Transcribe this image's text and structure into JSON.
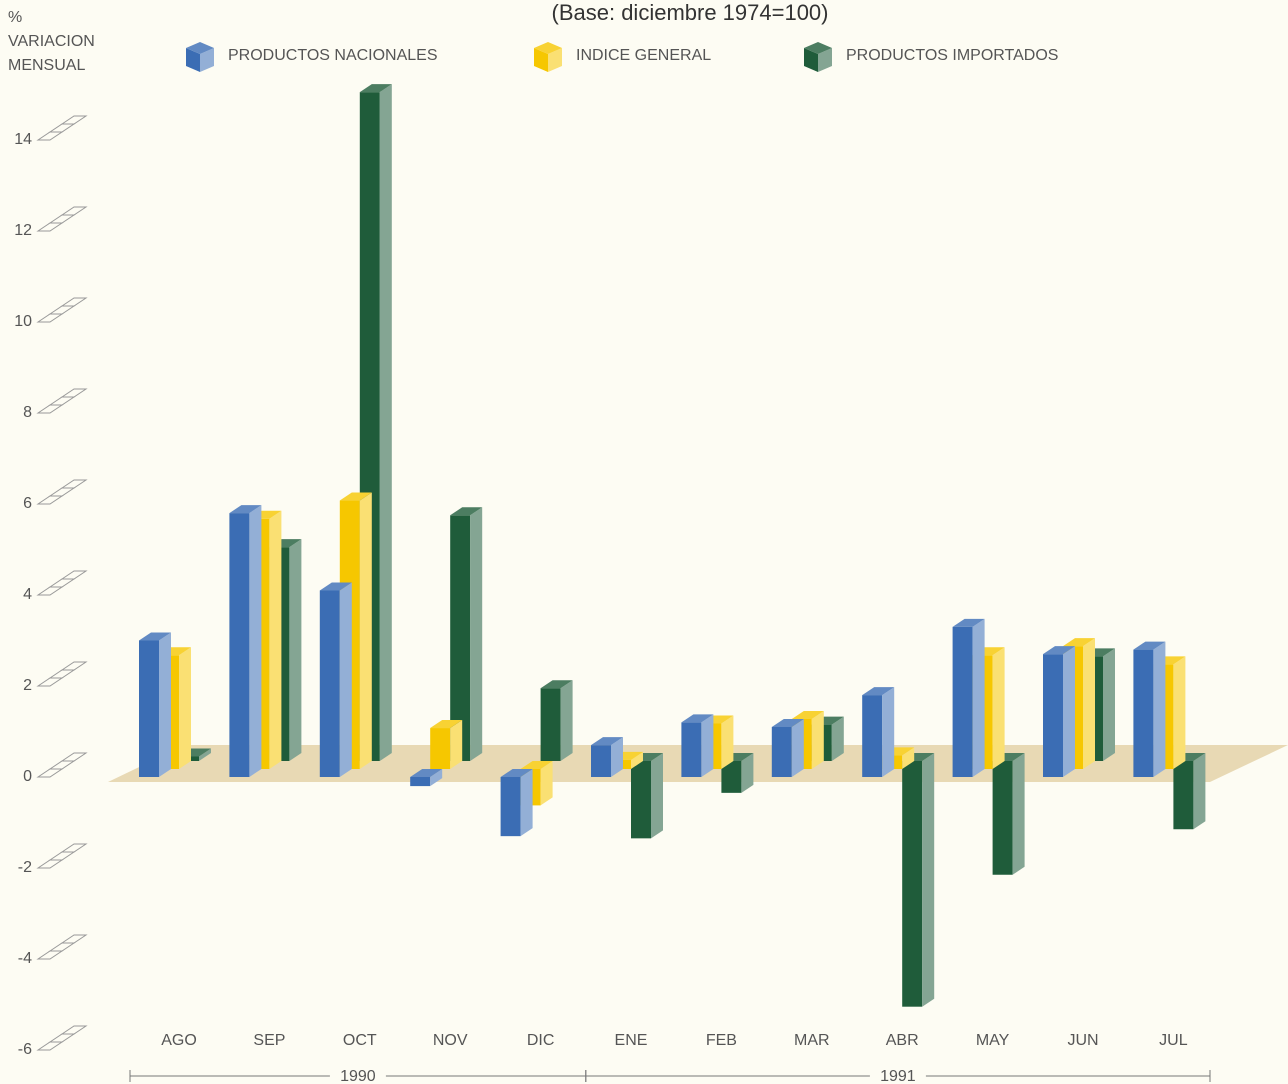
{
  "chart_data": {
    "type": "bar3d",
    "title": "(Base: diciembre 1974=100)",
    "y_label_lines": [
      "%",
      "VARIACION",
      "MENSUAL"
    ],
    "categories": [
      "AGO",
      "SEP",
      "OCT",
      "NOV",
      "DIC",
      "ENE",
      "FEB",
      "MAR",
      "ABR",
      "MAY",
      "JUN",
      "JUL"
    ],
    "category_groups": [
      {
        "label": "1990",
        "size": 5
      },
      {
        "label": "1991",
        "size": 7
      }
    ],
    "series": [
      {
        "name": "PRODUCTOS NACIONALES",
        "color": "#3b6db4",
        "values": [
          3.0,
          5.8,
          4.1,
          -0.2,
          -1.3,
          0.7,
          1.2,
          1.1,
          1.8,
          3.3,
          2.7,
          2.8
        ]
      },
      {
        "name": "INDICE GENERAL",
        "color": "#f6c700",
        "values": [
          2.5,
          5.5,
          5.9,
          0.9,
          -0.8,
          0.2,
          1.0,
          1.1,
          0.3,
          2.5,
          2.7,
          2.3
        ]
      },
      {
        "name": "PRODUCTOS IMPORTADOS",
        "color": "#1f5c3a",
        "values": [
          0.1,
          4.7,
          14.7,
          5.4,
          1.6,
          -1.7,
          -0.7,
          0.8,
          -5.4,
          -2.5,
          2.3,
          -1.5
        ]
      }
    ],
    "ylim": [
      -6,
      14
    ],
    "yticks": [
      -6,
      -4,
      -2,
      0,
      2,
      4,
      6,
      8,
      10,
      12,
      14
    ]
  }
}
